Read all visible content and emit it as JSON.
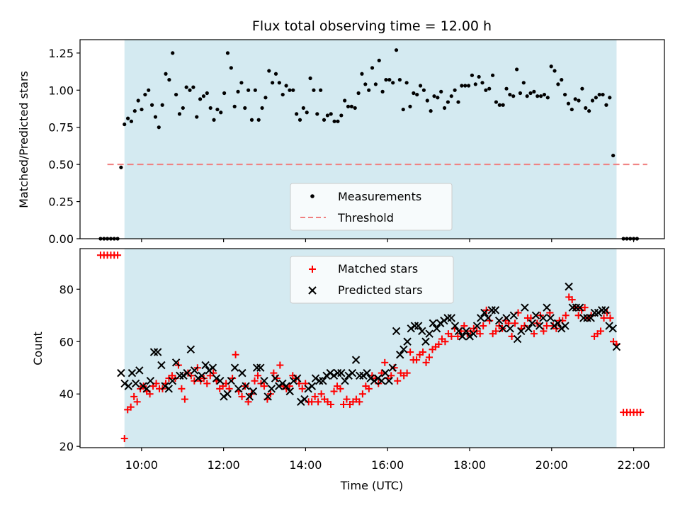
{
  "chart_data": [
    {
      "type": "scatter",
      "title": "Flux total observing time = 12.00 h",
      "xlabel": "",
      "ylabel": "Matched/Predicted stars",
      "ylim": [
        0.0,
        1.34
      ],
      "yticks": [
        "0.00",
        "0.25",
        "0.50",
        "0.75",
        "1.00",
        "1.25"
      ],
      "shaded_interval": [
        "09:35",
        "21:35"
      ],
      "shade_color": "#d4eaf1",
      "legend_position": "lower-center",
      "series": [
        {
          "name": "Measurements",
          "color": "#000000",
          "marker": "dot",
          "points": [
            [
              "09:00",
              0.0
            ],
            [
              "09:05",
              0.0
            ],
            [
              "09:10",
              0.0
            ],
            [
              "09:15",
              0.0
            ],
            [
              "09:20",
              0.0
            ],
            [
              "09:25",
              0.0
            ],
            [
              "09:30",
              0.48
            ],
            [
              "09:35",
              0.77
            ],
            [
              "09:42",
              0.81
            ],
            [
              "09:48",
              0.79
            ],
            [
              "09:54",
              0.86
            ],
            [
              "10:00",
              0.93
            ],
            [
              "10:06",
              0.87
            ],
            [
              "10:12",
              0.97
            ],
            [
              "10:18",
              1.0
            ],
            [
              "10:24",
              0.9
            ],
            [
              "10:30",
              0.82
            ],
            [
              "10:36",
              0.75
            ],
            [
              "10:42",
              0.9
            ],
            [
              "10:48",
              1.11
            ],
            [
              "10:54",
              1.07
            ],
            [
              "11:00",
              1.25
            ],
            [
              "11:06",
              0.97
            ],
            [
              "11:12",
              0.84
            ],
            [
              "11:18",
              0.88
            ],
            [
              "11:24",
              1.02
            ],
            [
              "11:30",
              1.0
            ],
            [
              "11:36",
              1.02
            ],
            [
              "11:42",
              0.82
            ],
            [
              "11:48",
              0.94
            ],
            [
              "11:54",
              0.96
            ],
            [
              "12:00",
              0.98
            ],
            [
              "12:06",
              0.88
            ],
            [
              "12:12",
              0.8
            ],
            [
              "12:18",
              0.87
            ],
            [
              "12:24",
              0.85
            ],
            [
              "12:30",
              0.98
            ],
            [
              "12:36",
              1.25
            ],
            [
              "12:42",
              1.15
            ],
            [
              "12:48",
              0.89
            ],
            [
              "12:54",
              0.99
            ],
            [
              "13:00",
              1.05
            ],
            [
              "13:06",
              0.88
            ],
            [
              "13:12",
              1.0
            ],
            [
              "13:18",
              0.8
            ],
            [
              "13:24",
              1.0
            ],
            [
              "13:30",
              0.8
            ],
            [
              "13:36",
              0.88
            ],
            [
              "13:42",
              0.95
            ],
            [
              "13:48",
              1.13
            ],
            [
              "13:54",
              1.05
            ],
            [
              "14:00",
              1.11
            ],
            [
              "14:06",
              1.05
            ],
            [
              "14:12",
              0.97
            ],
            [
              "14:18",
              1.03
            ],
            [
              "14:24",
              1.0
            ],
            [
              "14:30",
              1.0
            ],
            [
              "14:36",
              0.84
            ],
            [
              "14:42",
              0.8
            ],
            [
              "14:48",
              0.88
            ],
            [
              "14:54",
              0.85
            ],
            [
              "15:00",
              1.08
            ],
            [
              "15:06",
              1.0
            ],
            [
              "15:12",
              0.84
            ],
            [
              "15:18",
              1.0
            ],
            [
              "15:24",
              0.8
            ],
            [
              "15:30",
              0.83
            ],
            [
              "15:36",
              0.84
            ],
            [
              "15:42",
              0.79
            ],
            [
              "15:48",
              0.79
            ],
            [
              "15:54",
              0.83
            ],
            [
              "16:00",
              0.93
            ],
            [
              "16:06",
              0.89
            ],
            [
              "16:12",
              0.89
            ],
            [
              "16:18",
              0.88
            ],
            [
              "16:24",
              0.98
            ],
            [
              "16:30",
              1.11
            ],
            [
              "16:36",
              1.04
            ],
            [
              "16:42",
              1.0
            ],
            [
              "16:48",
              1.15
            ],
            [
              "16:54",
              1.04
            ],
            [
              "17:00",
              1.2
            ],
            [
              "17:06",
              0.99
            ],
            [
              "17:12",
              1.07
            ],
            [
              "17:18",
              1.07
            ],
            [
              "17:24",
              1.05
            ],
            [
              "17:30",
              1.27
            ],
            [
              "17:36",
              1.07
            ],
            [
              "17:42",
              0.87
            ],
            [
              "17:48",
              1.05
            ],
            [
              "17:54",
              0.89
            ],
            [
              "18:00",
              0.98
            ],
            [
              "18:06",
              0.97
            ],
            [
              "18:12",
              1.03
            ],
            [
              "18:18",
              1.0
            ],
            [
              "18:24",
              0.93
            ],
            [
              "18:30",
              0.86
            ],
            [
              "18:36",
              0.96
            ],
            [
              "18:42",
              0.95
            ],
            [
              "18:48",
              0.99
            ],
            [
              "18:54",
              0.88
            ],
            [
              "19:00",
              0.92
            ],
            [
              "19:06",
              0.96
            ],
            [
              "19:12",
              1.0
            ],
            [
              "19:18",
              0.92
            ],
            [
              "19:24",
              1.03
            ],
            [
              "19:30",
              1.03
            ],
            [
              "19:36",
              1.03
            ],
            [
              "19:42",
              1.1
            ],
            [
              "19:48",
              1.04
            ],
            [
              "19:54",
              1.09
            ],
            [
              "20:00",
              1.05
            ],
            [
              "20:06",
              1.0
            ],
            [
              "20:12",
              1.01
            ],
            [
              "20:18",
              1.1
            ],
            [
              "20:24",
              0.92
            ],
            [
              "20:30",
              0.9
            ],
            [
              "20:36",
              0.9
            ],
            [
              "20:42",
              1.01
            ],
            [
              "20:48",
              0.97
            ],
            [
              "20:54",
              0.96
            ],
            [
              "21:00",
              1.14
            ],
            [
              "21:06",
              0.98
            ],
            [
              "21:12",
              1.05
            ],
            [
              "21:18",
              0.96
            ],
            [
              "21:24",
              0.98
            ],
            [
              "21:30",
              0.99
            ],
            [
              "21:36",
              0.96
            ],
            [
              "21:42",
              0.96
            ],
            [
              "21:48",
              0.97
            ],
            [
              "21:54",
              0.95
            ],
            [
              "22:00",
              1.16
            ],
            [
              "22:06",
              1.13
            ],
            [
              "22:12",
              1.04
            ],
            [
              "22:18",
              1.07
            ],
            [
              "22:24",
              0.97
            ],
            [
              "22:30",
              0.91
            ],
            [
              "22:36",
              0.87
            ],
            [
              "22:42",
              0.94
            ],
            [
              "22:48",
              0.93
            ],
            [
              "22:54",
              1.01
            ],
            [
              "23:00",
              0.88
            ],
            [
              "23:06",
              0.86
            ],
            [
              "23:12",
              0.93
            ],
            [
              "23:18",
              0.95
            ],
            [
              "23:24",
              0.97
            ],
            [
              "23:30",
              0.97
            ],
            [
              "23:36",
              0.9
            ],
            [
              "23:42",
              0.95
            ],
            [
              "23:48",
              0.56
            ],
            [
              "23:54",
              0.0
            ],
            [
              "24:00",
              0.0
            ],
            [
              "24:06",
              0.0
            ],
            [
              "24:12",
              0.0
            ],
            [
              "24:18",
              0.0
            ]
          ]
        },
        {
          "name": "Threshold",
          "color": "#f08080",
          "style": "dashed",
          "points": [
            [
              "09:10",
              0.5
            ],
            [
              "22:20",
              0.5
            ]
          ]
        }
      ]
    },
    {
      "type": "scatter",
      "title": "",
      "xlabel": "Time (UTC)",
      "ylabel": "Count",
      "ylim": [
        19.5,
        95.5
      ],
      "yticks": [
        "20",
        "40",
        "60",
        "80"
      ],
      "xticks": [
        "10:00",
        "12:00",
        "14:00",
        "16:00",
        "18:00",
        "20:00",
        "22:00"
      ],
      "xlim": [
        "08:30",
        "22:45"
      ],
      "legend_position": "top-center",
      "series": [
        {
          "name": "Matched stars",
          "color": "#ff0000",
          "marker": "plus",
          "values_start": "09:35",
          "values_step_minutes": 5,
          "values": [
            23,
            34,
            35,
            39,
            37,
            42,
            43,
            41,
            40,
            43,
            44,
            42,
            42,
            44,
            46,
            47,
            46,
            51,
            42,
            38,
            48,
            47,
            45,
            50,
            45,
            46,
            44,
            47,
            48,
            45,
            42,
            43,
            44,
            42,
            46,
            55,
            41,
            39,
            43,
            37,
            40,
            45,
            47,
            44,
            43,
            38,
            40,
            48,
            46,
            51,
            43,
            42,
            43,
            47,
            46,
            44,
            42,
            44,
            37,
            37,
            39,
            37,
            40,
            38,
            37,
            36,
            41,
            43,
            42,
            36,
            38,
            36,
            37,
            38,
            37,
            40,
            43,
            42,
            47,
            46,
            44,
            48,
            52,
            46,
            47,
            50,
            45,
            48,
            47,
            48,
            56,
            53,
            53,
            55,
            56,
            52,
            54,
            57,
            58,
            59,
            61,
            60,
            63,
            62,
            65,
            62,
            64,
            66,
            63,
            64,
            65,
            64,
            63,
            66,
            72,
            68,
            63,
            64,
            66,
            65,
            68,
            67,
            62,
            67,
            71,
            65,
            66,
            69,
            69,
            63,
            67,
            70,
            64,
            66,
            71,
            66,
            65,
            68,
            68,
            70,
            77,
            76,
            73,
            70,
            72,
            73,
            69,
            70,
            62,
            63,
            64,
            69,
            71,
            69,
            60,
            59
          ]
        },
        {
          "name": "Predicted stars",
          "color": "#000000",
          "marker": "x",
          "values_start": "09:30",
          "values_step_minutes": 5,
          "values": [
            48,
            44,
            43,
            48,
            44,
            49,
            43,
            42,
            45,
            56,
            56,
            51,
            43,
            42,
            45,
            52,
            47,
            47,
            48,
            57,
            49,
            46,
            47,
            51,
            49,
            50,
            46,
            45,
            39,
            40,
            45,
            50,
            42,
            48,
            43,
            39,
            41,
            50,
            50,
            45,
            39,
            42,
            46,
            43,
            44,
            43,
            41,
            45,
            46,
            37,
            38,
            42,
            43,
            46,
            45,
            45,
            47,
            48,
            47,
            48,
            48,
            45,
            47,
            48,
            53,
            47,
            47,
            48,
            46,
            45,
            46,
            45,
            48,
            45,
            50,
            64,
            55,
            57,
            60,
            65,
            66,
            66,
            64,
            60,
            63,
            67,
            65,
            67,
            68,
            69,
            69,
            66,
            64,
            62,
            64,
            62,
            63,
            66,
            69,
            71,
            69,
            72,
            72,
            68,
            65,
            69,
            65,
            70,
            61,
            64,
            73,
            65,
            67,
            70,
            66,
            69,
            73,
            69,
            66,
            67,
            65,
            66,
            81,
            73,
            73,
            73,
            69,
            69,
            69,
            71,
            71,
            72,
            72,
            66,
            65,
            58
          ]
        },
        {
          "name": "",
          "color": "#ff0000",
          "marker": "plus",
          "points": [
            [
              "09:00",
              93
            ],
            [
              "09:05",
              93
            ],
            [
              "09:10",
              93
            ],
            [
              "09:15",
              93
            ],
            [
              "09:20",
              93
            ],
            [
              "09:25",
              93
            ],
            [
              "21:45",
              33
            ],
            [
              "21:50",
              33
            ],
            [
              "21:55",
              33
            ],
            [
              "22:00",
              33
            ],
            [
              "22:05",
              33
            ],
            [
              "22:10",
              33
            ]
          ]
        }
      ]
    }
  ]
}
